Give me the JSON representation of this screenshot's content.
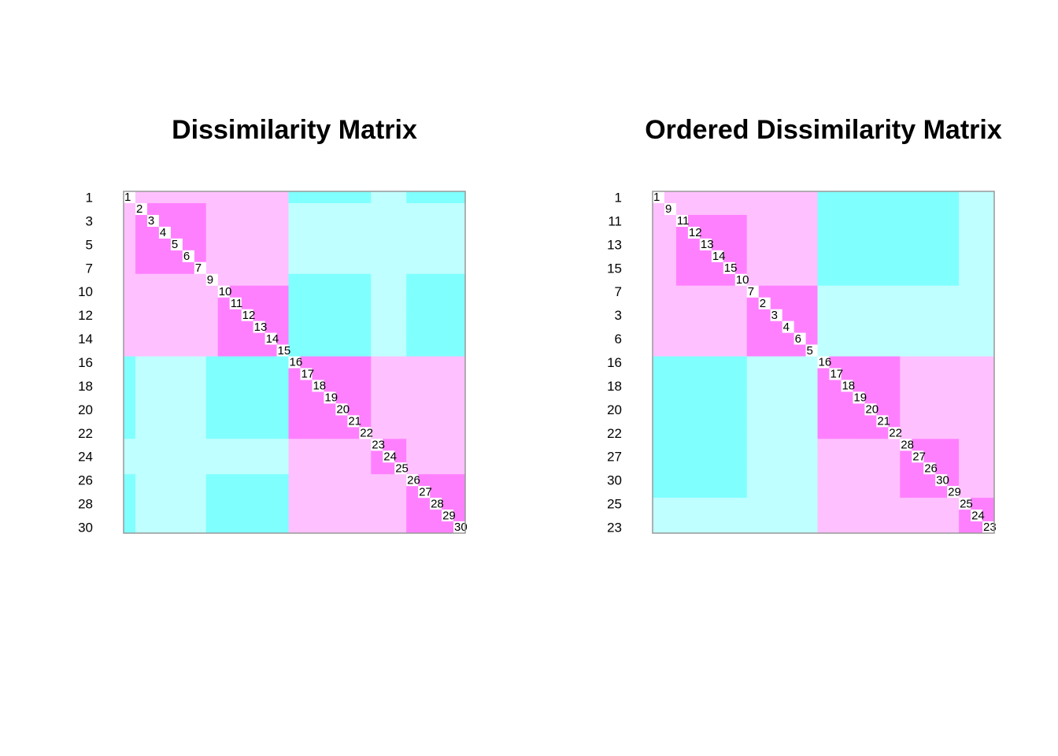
{
  "chart_data": [
    {
      "type": "heatmap",
      "title": "Dissimilarity Matrix",
      "labels": [
        1,
        2,
        3,
        4,
        5,
        6,
        7,
        9,
        10,
        11,
        12,
        13,
        14,
        15,
        16,
        17,
        18,
        19,
        20,
        21,
        22,
        23,
        24,
        25,
        26,
        27,
        28,
        29,
        30
      ],
      "colors": [
        "#FF80FF",
        "#FFC0FF",
        "#C0FFFF",
        "#80FFFF"
      ],
      "values": [
        [
          null,
          1,
          1,
          1,
          1,
          1,
          1,
          1,
          1,
          1,
          1,
          1,
          1,
          1,
          3,
          3,
          3,
          3,
          3,
          3,
          3,
          2,
          2,
          2,
          3,
          3,
          3,
          3,
          3
        ],
        [
          1,
          null,
          0,
          0,
          0,
          0,
          0,
          1,
          1,
          1,
          1,
          1,
          1,
          1,
          2,
          2,
          2,
          2,
          2,
          2,
          2,
          2,
          2,
          2,
          2,
          2,
          2,
          2,
          2
        ],
        [
          1,
          0,
          null,
          0,
          0,
          0,
          0,
          1,
          1,
          1,
          1,
          1,
          1,
          1,
          2,
          2,
          2,
          2,
          2,
          2,
          2,
          2,
          2,
          2,
          2,
          2,
          2,
          2,
          2
        ],
        [
          1,
          0,
          0,
          null,
          0,
          0,
          0,
          1,
          1,
          1,
          1,
          1,
          1,
          1,
          2,
          2,
          2,
          2,
          2,
          2,
          2,
          2,
          2,
          2,
          2,
          2,
          2,
          2,
          2
        ],
        [
          1,
          0,
          0,
          0,
          null,
          0,
          0,
          1,
          1,
          1,
          1,
          1,
          1,
          1,
          2,
          2,
          2,
          2,
          2,
          2,
          2,
          2,
          2,
          2,
          2,
          2,
          2,
          2,
          2
        ],
        [
          1,
          0,
          0,
          0,
          0,
          null,
          0,
          1,
          1,
          1,
          1,
          1,
          1,
          1,
          2,
          2,
          2,
          2,
          2,
          2,
          2,
          2,
          2,
          2,
          2,
          2,
          2,
          2,
          2
        ],
        [
          1,
          0,
          0,
          0,
          0,
          0,
          null,
          1,
          1,
          1,
          1,
          1,
          1,
          1,
          2,
          2,
          2,
          2,
          2,
          2,
          2,
          2,
          2,
          2,
          2,
          2,
          2,
          2,
          2
        ],
        [
          1,
          1,
          1,
          1,
          1,
          1,
          1,
          null,
          1,
          1,
          1,
          1,
          1,
          1,
          3,
          3,
          3,
          3,
          3,
          3,
          3,
          2,
          2,
          2,
          3,
          3,
          3,
          3,
          3
        ],
        [
          1,
          1,
          1,
          1,
          1,
          1,
          1,
          1,
          null,
          0,
          0,
          0,
          0,
          0,
          3,
          3,
          3,
          3,
          3,
          3,
          3,
          2,
          2,
          2,
          3,
          3,
          3,
          3,
          3
        ],
        [
          1,
          1,
          1,
          1,
          1,
          1,
          1,
          1,
          0,
          null,
          0,
          0,
          0,
          0,
          3,
          3,
          3,
          3,
          3,
          3,
          3,
          2,
          2,
          2,
          3,
          3,
          3,
          3,
          3
        ],
        [
          1,
          1,
          1,
          1,
          1,
          1,
          1,
          1,
          0,
          0,
          null,
          0,
          0,
          0,
          3,
          3,
          3,
          3,
          3,
          3,
          3,
          2,
          2,
          2,
          3,
          3,
          3,
          3,
          3
        ],
        [
          1,
          1,
          1,
          1,
          1,
          1,
          1,
          1,
          0,
          0,
          0,
          null,
          0,
          0,
          3,
          3,
          3,
          3,
          3,
          3,
          3,
          2,
          2,
          2,
          3,
          3,
          3,
          3,
          3
        ],
        [
          1,
          1,
          1,
          1,
          1,
          1,
          1,
          1,
          0,
          0,
          0,
          0,
          null,
          0,
          3,
          3,
          3,
          3,
          3,
          3,
          3,
          2,
          2,
          2,
          3,
          3,
          3,
          3,
          3
        ],
        [
          1,
          1,
          1,
          1,
          1,
          1,
          1,
          1,
          0,
          0,
          0,
          0,
          0,
          null,
          3,
          3,
          3,
          3,
          3,
          3,
          3,
          2,
          2,
          2,
          3,
          3,
          3,
          3,
          3
        ],
        [
          3,
          2,
          2,
          2,
          2,
          2,
          2,
          3,
          3,
          3,
          3,
          3,
          3,
          3,
          null,
          0,
          0,
          0,
          0,
          0,
          0,
          1,
          1,
          1,
          1,
          1,
          1,
          1,
          1
        ],
        [
          3,
          2,
          2,
          2,
          2,
          2,
          2,
          3,
          3,
          3,
          3,
          3,
          3,
          3,
          0,
          null,
          0,
          0,
          0,
          0,
          0,
          1,
          1,
          1,
          1,
          1,
          1,
          1,
          1
        ],
        [
          3,
          2,
          2,
          2,
          2,
          2,
          2,
          3,
          3,
          3,
          3,
          3,
          3,
          3,
          0,
          0,
          null,
          0,
          0,
          0,
          0,
          1,
          1,
          1,
          1,
          1,
          1,
          1,
          1
        ],
        [
          3,
          2,
          2,
          2,
          2,
          2,
          2,
          3,
          3,
          3,
          3,
          3,
          3,
          3,
          0,
          0,
          0,
          null,
          0,
          0,
          0,
          1,
          1,
          1,
          1,
          1,
          1,
          1,
          1
        ],
        [
          3,
          2,
          2,
          2,
          2,
          2,
          2,
          3,
          3,
          3,
          3,
          3,
          3,
          3,
          0,
          0,
          0,
          0,
          null,
          0,
          0,
          1,
          1,
          1,
          1,
          1,
          1,
          1,
          1
        ],
        [
          3,
          2,
          2,
          2,
          2,
          2,
          2,
          3,
          3,
          3,
          3,
          3,
          3,
          3,
          0,
          0,
          0,
          0,
          0,
          null,
          0,
          1,
          1,
          1,
          1,
          1,
          1,
          1,
          1
        ],
        [
          3,
          2,
          2,
          2,
          2,
          2,
          2,
          3,
          3,
          3,
          3,
          3,
          3,
          3,
          0,
          0,
          0,
          0,
          0,
          0,
          null,
          1,
          1,
          1,
          1,
          1,
          1,
          1,
          1
        ],
        [
          2,
          2,
          2,
          2,
          2,
          2,
          2,
          2,
          2,
          2,
          2,
          2,
          2,
          2,
          1,
          1,
          1,
          1,
          1,
          1,
          1,
          null,
          0,
          0,
          1,
          1,
          1,
          1,
          1
        ],
        [
          2,
          2,
          2,
          2,
          2,
          2,
          2,
          2,
          2,
          2,
          2,
          2,
          2,
          2,
          1,
          1,
          1,
          1,
          1,
          1,
          1,
          0,
          null,
          0,
          1,
          1,
          1,
          1,
          1
        ],
        [
          2,
          2,
          2,
          2,
          2,
          2,
          2,
          2,
          2,
          2,
          2,
          2,
          2,
          2,
          1,
          1,
          1,
          1,
          1,
          1,
          1,
          0,
          0,
          null,
          1,
          1,
          1,
          1,
          1
        ],
        [
          3,
          2,
          2,
          2,
          2,
          2,
          2,
          3,
          3,
          3,
          3,
          3,
          3,
          3,
          1,
          1,
          1,
          1,
          1,
          1,
          1,
          1,
          1,
          1,
          null,
          0,
          0,
          0,
          0
        ],
        [
          3,
          2,
          2,
          2,
          2,
          2,
          2,
          3,
          3,
          3,
          3,
          3,
          3,
          3,
          1,
          1,
          1,
          1,
          1,
          1,
          1,
          1,
          1,
          1,
          0,
          null,
          0,
          0,
          0
        ],
        [
          3,
          2,
          2,
          2,
          2,
          2,
          2,
          3,
          3,
          3,
          3,
          3,
          3,
          3,
          1,
          1,
          1,
          1,
          1,
          1,
          1,
          1,
          1,
          1,
          0,
          0,
          null,
          0,
          0
        ],
        [
          3,
          2,
          2,
          2,
          2,
          2,
          2,
          3,
          3,
          3,
          3,
          3,
          3,
          3,
          1,
          1,
          1,
          1,
          1,
          1,
          1,
          1,
          1,
          1,
          0,
          0,
          0,
          null,
          0
        ],
        [
          3,
          2,
          2,
          2,
          2,
          2,
          2,
          3,
          3,
          3,
          3,
          3,
          3,
          3,
          1,
          1,
          1,
          1,
          1,
          1,
          1,
          1,
          1,
          1,
          0,
          0,
          0,
          0,
          null
        ]
      ]
    },
    {
      "type": "heatmap",
      "title": "Ordered Dissimilarity Matrix",
      "labels": [
        1,
        9,
        11,
        12,
        13,
        14,
        15,
        10,
        7,
        2,
        3,
        4,
        6,
        5,
        16,
        17,
        18,
        19,
        20,
        21,
        22,
        28,
        27,
        26,
        30,
        29,
        25,
        24,
        23
      ]
    }
  ]
}
